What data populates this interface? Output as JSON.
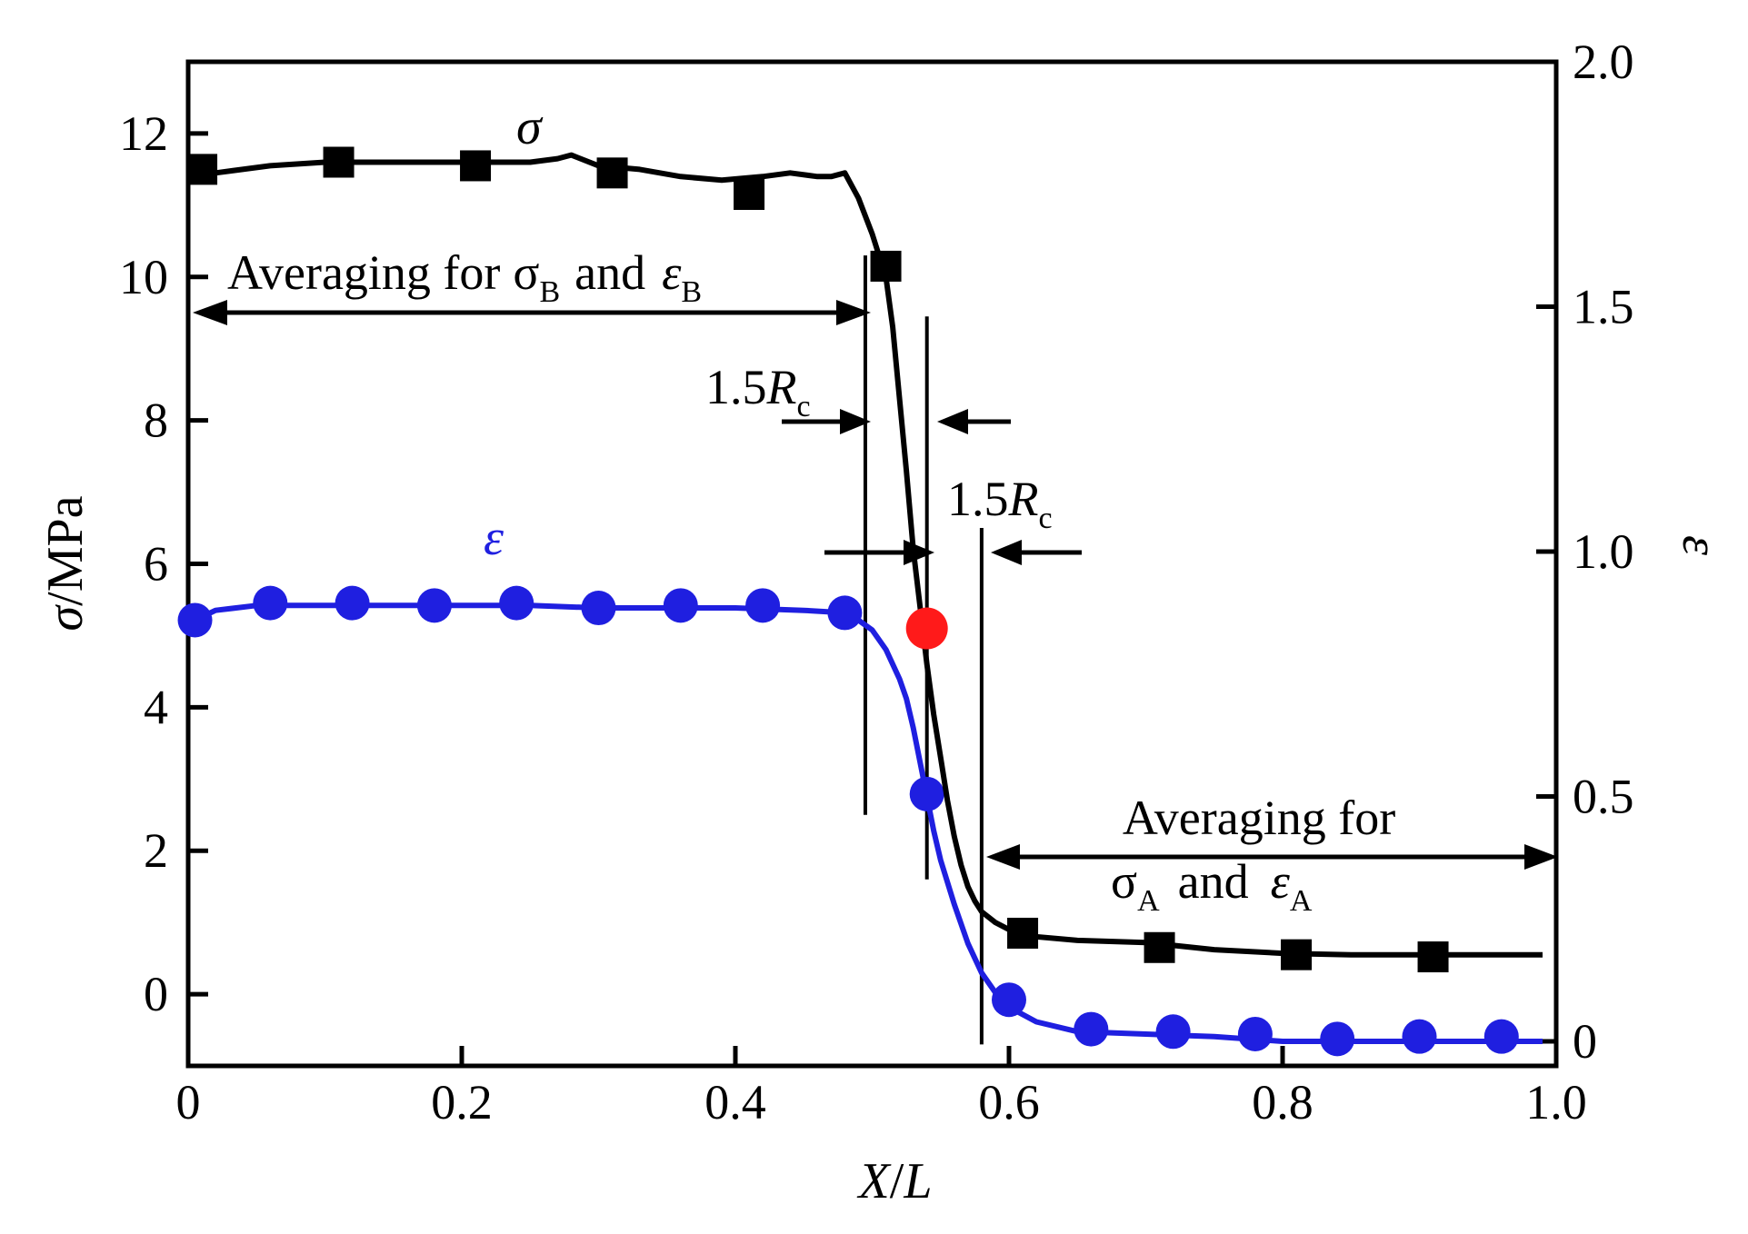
{
  "chart_data": {
    "type": "line",
    "x_axis": {
      "label_main": "X",
      "label_sep": "/",
      "label_den": "L",
      "range": [
        0,
        1.0
      ],
      "ticks": [
        "0",
        "0.2",
        "0.4",
        "0.6",
        "0.8",
        "1.0"
      ],
      "tick_values": [
        0,
        0.2,
        0.4,
        0.6,
        0.8,
        1.0
      ]
    },
    "y_axis_left": {
      "label_sym": "σ",
      "label_unit": "/MPa",
      "range": [
        -1,
        13
      ],
      "ticks": [
        "0",
        "2",
        "4",
        "6",
        "8",
        "10",
        "12"
      ],
      "tick_values": [
        0,
        2,
        4,
        6,
        8,
        10,
        12
      ]
    },
    "y_axis_right": {
      "label": "ε",
      "range": [
        -0.05,
        2.0
      ],
      "ticks": [
        "0",
        "0.5",
        "1.0",
        "1.5",
        "2.0"
      ],
      "tick_values": [
        0,
        0.5,
        1.0,
        1.5,
        2.0
      ]
    },
    "series": [
      {
        "name": "σ",
        "axis": "left",
        "color": "#000000",
        "marker": "square",
        "line_x": [
          0.005,
          0.02,
          0.06,
          0.1,
          0.15,
          0.2,
          0.25,
          0.27,
          0.28,
          0.3,
          0.33,
          0.36,
          0.39,
          0.42,
          0.44,
          0.46,
          0.47,
          0.48,
          0.49,
          0.5,
          0.505,
          0.51,
          0.515,
          0.52,
          0.525,
          0.53,
          0.535,
          0.54,
          0.545,
          0.55,
          0.555,
          0.56,
          0.565,
          0.57,
          0.575,
          0.58,
          0.59,
          0.6,
          0.62,
          0.65,
          0.7,
          0.75,
          0.8,
          0.85,
          0.9,
          0.95,
          0.99
        ],
        "line_y": [
          11.5,
          11.45,
          11.55,
          11.6,
          11.6,
          11.6,
          11.6,
          11.65,
          11.7,
          11.55,
          11.5,
          11.4,
          11.35,
          11.4,
          11.45,
          11.4,
          11.4,
          11.45,
          11.1,
          10.6,
          10.3,
          10.0,
          9.3,
          8.3,
          7.3,
          6.2,
          5.4,
          4.6,
          3.9,
          3.3,
          2.7,
          2.2,
          1.8,
          1.5,
          1.3,
          1.15,
          1.0,
          0.9,
          0.8,
          0.75,
          0.72,
          0.62,
          0.57,
          0.55,
          0.55,
          0.55,
          0.55
        ],
        "markers_x": [
          0.01,
          0.11,
          0.21,
          0.31,
          0.41,
          0.51,
          0.61,
          0.71,
          0.81,
          0.91
        ],
        "markers_y": [
          11.5,
          11.6,
          11.55,
          11.45,
          11.15,
          10.15,
          0.85,
          0.65,
          0.55,
          0.52
        ]
      },
      {
        "name": "ε",
        "axis": "right",
        "color": "#1f1fe0",
        "marker": "circle",
        "line_x": [
          0.005,
          0.02,
          0.05,
          0.1,
          0.15,
          0.2,
          0.25,
          0.3,
          0.35,
          0.4,
          0.45,
          0.48,
          0.49,
          0.5,
          0.51,
          0.52,
          0.525,
          0.53,
          0.535,
          0.54,
          0.545,
          0.55,
          0.56,
          0.57,
          0.58,
          0.59,
          0.6,
          0.62,
          0.65,
          0.7,
          0.75,
          0.8,
          0.85,
          0.9,
          0.95,
          0.99
        ],
        "line_y": [
          0.86,
          0.88,
          0.89,
          0.89,
          0.89,
          0.89,
          0.89,
          0.885,
          0.885,
          0.885,
          0.88,
          0.875,
          0.86,
          0.84,
          0.8,
          0.74,
          0.7,
          0.64,
          0.57,
          0.5,
          0.43,
          0.37,
          0.28,
          0.2,
          0.14,
          0.1,
          0.07,
          0.04,
          0.02,
          0.015,
          0.01,
          0.0,
          0.0,
          0.0,
          0.0,
          0.0
        ],
        "markers_x": [
          0.005,
          0.06,
          0.12,
          0.18,
          0.24,
          0.3,
          0.36,
          0.42,
          0.48,
          0.54,
          0.6,
          0.66,
          0.72,
          0.78,
          0.84,
          0.9,
          0.96
        ],
        "markers_y": [
          0.86,
          0.895,
          0.895,
          0.89,
          0.895,
          0.885,
          0.89,
          0.89,
          0.875,
          0.505,
          0.085,
          0.025,
          0.02,
          0.015,
          0.005,
          0.01,
          0.01
        ]
      }
    ],
    "highlight_point": {
      "x": 0.54,
      "y_left": 5.1,
      "color": "#ff1a1a"
    },
    "vertical_lines": [
      {
        "x": 0.495,
        "y_top": 10.3,
        "y_bottom": 2.5
      },
      {
        "x": 0.54,
        "y_top": 9.45,
        "y_bottom": 1.6
      },
      {
        "x": 0.58,
        "y_top": 6.5,
        "y_bottom": -0.7
      }
    ],
    "annotations": {
      "avg_b_prefix": "Averaging for",
      "avg_b_sigma": "σ",
      "avg_b_sub1": "B",
      "avg_b_and": "and",
      "avg_b_eps": "ε",
      "avg_b_sub2": "B",
      "avg_a_line1": "Averaging for",
      "avg_a_sigma": "σ",
      "avg_a_sub1": "A",
      "avg_a_and": "and",
      "avg_a_eps": "ε",
      "avg_a_sub2": "A",
      "rc1_num": "1.5",
      "rc1_r": "R",
      "rc1_sub": "c",
      "rc2_num": "1.5",
      "rc2_r": "R",
      "rc2_sub": "c",
      "sigma_label": "σ",
      "eps_label": "ε"
    }
  }
}
